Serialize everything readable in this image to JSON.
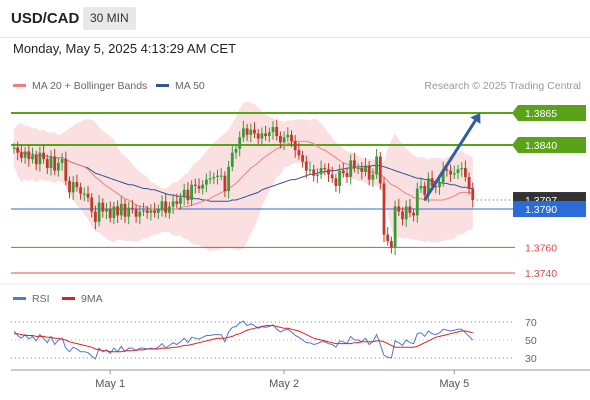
{
  "header": {
    "symbol": "USD/CAD",
    "timeframe": "30 MIN"
  },
  "datetime": "Monday, May 5, 2025 4:13:29 AM CET",
  "legend": {
    "ma20": "MA 20 + Bollinger Bands",
    "ma50": "MA 50",
    "credit": "Research © 2025 Trading Central",
    "rsi": "RSI",
    "rsi_ma": "9MA"
  },
  "colors": {
    "ma20": "#f08080",
    "ma50": "#2f5597",
    "bullish": "#3a9a3a",
    "bearish": "#c0392b",
    "resistance": "#5aa318",
    "support": "#e04848",
    "current": "#333333",
    "pivot": "#2a6dd9",
    "rsi": "#4e79d0",
    "rsi_ma": "#dd2222",
    "arrow": "#2f5f9f",
    "band": "#f6c6c6"
  },
  "chart_data": [
    {
      "type": "candlestick",
      "ylim": [
        1.373,
        1.388
      ],
      "x_ticks": [
        "May 1",
        "May 2",
        "May 5"
      ],
      "levels": [
        {
          "role": "resistance",
          "value": 1.3865,
          "label": "1.3865"
        },
        {
          "role": "resistance",
          "value": 1.384,
          "label": "1.3840"
        },
        {
          "role": "current",
          "value": 1.3797,
          "label": "1.3797"
        },
        {
          "role": "pivot",
          "value": 1.379,
          "label": "1.3790"
        },
        {
          "role": "support",
          "value": 1.376,
          "label": "1.3760"
        },
        {
          "role": "support",
          "value": 1.374,
          "label": "1.3740"
        }
      ],
      "arrow": {
        "from_index": 111,
        "from_value": 1.3797,
        "to_index": 126,
        "to_value": 1.3865
      },
      "close": [
        1.3838,
        1.3834,
        1.383,
        1.3835,
        1.3829,
        1.3832,
        1.3825,
        1.3834,
        1.3829,
        1.3822,
        1.3831,
        1.382,
        1.3826,
        1.3829,
        1.3812,
        1.3803,
        1.3811,
        1.3807,
        1.3802,
        1.3802,
        1.3799,
        1.3788,
        1.378,
        1.3795,
        1.3788,
        1.379,
        1.3783,
        1.3792,
        1.3785,
        1.3794,
        1.3784,
        1.3791,
        1.379,
        1.3784,
        1.3788,
        1.3789,
        1.3787,
        1.3789,
        1.3787,
        1.379,
        1.3796,
        1.3787,
        1.3792,
        1.3796,
        1.3794,
        1.3799,
        1.3805,
        1.3797,
        1.3809,
        1.3808,
        1.3806,
        1.3809,
        1.3813,
        1.3814,
        1.3815,
        1.3816,
        1.3816,
        1.3804,
        1.3823,
        1.3834,
        1.3837,
        1.3846,
        1.3853,
        1.3848,
        1.3852,
        1.3849,
        1.3845,
        1.3849,
        1.3847,
        1.385,
        1.3854,
        1.3847,
        1.3842,
        1.3846,
        1.3848,
        1.3843,
        1.3836,
        1.3832,
        1.3827,
        1.382,
        1.3821,
        1.3816,
        1.3817,
        1.3822,
        1.3821,
        1.3817,
        1.3814,
        1.3808,
        1.382,
        1.3818,
        1.3815,
        1.3828,
        1.3822,
        1.3822,
        1.3819,
        1.3824,
        1.3813,
        1.3817,
        1.3831,
        1.381,
        1.377,
        1.3765,
        1.376,
        1.3792,
        1.3788,
        1.3782,
        1.3792,
        1.3787,
        1.3785,
        1.3806,
        1.3808,
        1.3801,
        1.3814,
        1.3808,
        1.3807,
        1.3811,
        1.3821,
        1.382,
        1.3817,
        1.3818,
        1.3821,
        1.3822,
        1.3815,
        1.3806,
        1.3797
      ],
      "open": [
        1.3838,
        1.3838,
        1.3834,
        1.383,
        1.3835,
        1.3829,
        1.3832,
        1.3825,
        1.3834,
        1.3829,
        1.3822,
        1.3831,
        1.382,
        1.3826,
        1.3829,
        1.3812,
        1.3803,
        1.3811,
        1.3807,
        1.3802,
        1.3802,
        1.3799,
        1.3788,
        1.378,
        1.3795,
        1.3788,
        1.379,
        1.3783,
        1.3792,
        1.3785,
        1.3794,
        1.3784,
        1.3791,
        1.379,
        1.3784,
        1.3788,
        1.3789,
        1.3787,
        1.3789,
        1.3787,
        1.379,
        1.3796,
        1.3787,
        1.3792,
        1.3796,
        1.3794,
        1.3799,
        1.3805,
        1.3797,
        1.3809,
        1.3808,
        1.3806,
        1.3809,
        1.3813,
        1.3814,
        1.3815,
        1.3816,
        1.3816,
        1.3804,
        1.3823,
        1.3834,
        1.3837,
        1.3846,
        1.3853,
        1.3848,
        1.3852,
        1.3849,
        1.3845,
        1.3849,
        1.3847,
        1.385,
        1.3854,
        1.3847,
        1.3842,
        1.3846,
        1.3848,
        1.3843,
        1.3836,
        1.3832,
        1.3827,
        1.382,
        1.3821,
        1.3816,
        1.3817,
        1.3822,
        1.3821,
        1.3817,
        1.3814,
        1.3808,
        1.382,
        1.3818,
        1.3815,
        1.3828,
        1.3822,
        1.3822,
        1.3819,
        1.3824,
        1.3813,
        1.3817,
        1.3831,
        1.381,
        1.377,
        1.3765,
        1.376,
        1.3792,
        1.3788,
        1.3782,
        1.3792,
        1.3787,
        1.3785,
        1.3806,
        1.3808,
        1.3801,
        1.3814,
        1.3808,
        1.3807,
        1.3811,
        1.3821,
        1.382,
        1.3817,
        1.3818,
        1.3821,
        1.3822,
        1.3815,
        1.3806
      ],
      "ma20": [
        1.3838,
        1.3836,
        1.3834,
        1.3834,
        1.3833,
        1.3833,
        1.3832,
        1.3832,
        1.3832,
        1.3831,
        1.3831,
        1.383,
        1.383,
        1.383,
        1.3829,
        1.3827,
        1.3826,
        1.3825,
        1.3824,
        1.3823,
        1.3821,
        1.3818,
        1.3815,
        1.3813,
        1.381,
        1.3808,
        1.3806,
        1.3804,
        1.3802,
        1.38,
        1.3798,
        1.3797,
        1.3795,
        1.3793,
        1.3792,
        1.3792,
        1.3791,
        1.379,
        1.379,
        1.3789,
        1.3789,
        1.3789,
        1.379,
        1.379,
        1.379,
        1.3791,
        1.3792,
        1.3792,
        1.3793,
        1.3794,
        1.3795,
        1.3796,
        1.3797,
        1.3798,
        1.38,
        1.3801,
        1.3803,
        1.3804,
        1.3806,
        1.3808,
        1.381,
        1.3813,
        1.3816,
        1.3819,
        1.3822,
        1.3824,
        1.3826,
        1.3829,
        1.3831,
        1.3833,
        1.3835,
        1.3837,
        1.3838,
        1.384,
        1.3841,
        1.3842,
        1.3843,
        1.3843,
        1.3843,
        1.3843,
        1.3842,
        1.3841,
        1.3839,
        1.3837,
        1.3836,
        1.3834,
        1.3832,
        1.383,
        1.3828,
        1.3826,
        1.3825,
        1.3824,
        1.3823,
        1.3822,
        1.3821,
        1.382,
        1.3819,
        1.3819,
        1.3818,
        1.3817,
        1.3815,
        1.3812,
        1.3809,
        1.3808,
        1.3806,
        1.3804,
        1.3802,
        1.3801,
        1.3799,
        1.3798,
        1.3798,
        1.3797,
        1.3797,
        1.3797,
        1.3797,
        1.3797,
        1.3797,
        1.3798,
        1.3799,
        1.38,
        1.3802,
        1.3803,
        1.3803,
        1.3803,
        1.3802
      ],
      "upper_band": [
        1.3852,
        1.3856,
        1.3857,
        1.3855,
        1.3855,
        1.3853,
        1.3853,
        1.3851,
        1.3852,
        1.385,
        1.385,
        1.385,
        1.3848,
        1.3849,
        1.3851,
        1.3853,
        1.3855,
        1.3857,
        1.3858,
        1.386,
        1.386,
        1.386,
        1.3858,
        1.3854,
        1.3851,
        1.3849,
        1.3847,
        1.3844,
        1.3838,
        1.3834,
        1.3831,
        1.3829,
        1.3825,
        1.3822,
        1.3819,
        1.3817,
        1.3815,
        1.3811,
        1.381,
        1.3808,
        1.3806,
        1.3806,
        1.3808,
        1.3811,
        1.3811,
        1.3813,
        1.3817,
        1.3818,
        1.3823,
        1.3826,
        1.3828,
        1.3832,
        1.3835,
        1.3839,
        1.3842,
        1.3844,
        1.3847,
        1.3849,
        1.3852,
        1.3857,
        1.3862,
        1.3868,
        1.3873,
        1.3874,
        1.3873,
        1.3872,
        1.3869,
        1.3866,
        1.3864,
        1.3862,
        1.3861,
        1.3859,
        1.3859,
        1.3858,
        1.3859,
        1.3859,
        1.386,
        1.386,
        1.386,
        1.386,
        1.3859,
        1.3861,
        1.386,
        1.3857,
        1.3854,
        1.3849,
        1.3846,
        1.3842,
        1.384,
        1.3837,
        1.3835,
        1.3835,
        1.3833,
        1.3832,
        1.383,
        1.383,
        1.3829,
        1.3829,
        1.3828,
        1.3827,
        1.3827,
        1.3837,
        1.3844,
        1.3849,
        1.3844,
        1.3841,
        1.3837,
        1.3835,
        1.3832,
        1.383,
        1.3831,
        1.383,
        1.3829,
        1.383,
        1.383,
        1.383,
        1.3829,
        1.383,
        1.3832,
        1.3833,
        1.3834,
        1.3836,
        1.3833,
        1.3832,
        1.383
      ],
      "lower_band": [
        1.3824,
        1.3816,
        1.3811,
        1.3813,
        1.3812,
        1.3813,
        1.3811,
        1.3813,
        1.3812,
        1.3812,
        1.3812,
        1.381,
        1.3812,
        1.3811,
        1.3807,
        1.3801,
        1.3797,
        1.3793,
        1.379,
        1.3786,
        1.3782,
        1.3776,
        1.3772,
        1.3772,
        1.3769,
        1.3767,
        1.3765,
        1.3764,
        1.3766,
        1.3766,
        1.3765,
        1.3765,
        1.3765,
        1.3764,
        1.3765,
        1.3767,
        1.3767,
        1.3769,
        1.377,
        1.377,
        1.3772,
        1.3772,
        1.3772,
        1.3769,
        1.3769,
        1.3769,
        1.3767,
        1.3766,
        1.3763,
        1.3762,
        1.3762,
        1.376,
        1.3759,
        1.3757,
        1.3758,
        1.3758,
        1.3759,
        1.3759,
        1.376,
        1.3759,
        1.3758,
        1.3758,
        1.3759,
        1.3764,
        1.3771,
        1.3776,
        1.3783,
        1.3792,
        1.3798,
        1.3804,
        1.3809,
        1.3815,
        1.3817,
        1.3822,
        1.3823,
        1.3825,
        1.3826,
        1.3826,
        1.3826,
        1.3826,
        1.3825,
        1.3821,
        1.3818,
        1.3817,
        1.3818,
        1.3819,
        1.3818,
        1.3818,
        1.3816,
        1.3815,
        1.3815,
        1.3813,
        1.3813,
        1.3812,
        1.3812,
        1.381,
        1.3809,
        1.3809,
        1.3808,
        1.3807,
        1.3803,
        1.3787,
        1.3774,
        1.3767,
        1.3768,
        1.3767,
        1.3767,
        1.3767,
        1.3766,
        1.3766,
        1.3765,
        1.3764,
        1.3765,
        1.3764,
        1.3764,
        1.3764,
        1.3765,
        1.3766,
        1.3766,
        1.3767,
        1.377,
        1.377,
        1.3772,
        1.3774,
        1.3774
      ],
      "ma50": [
        1.3838,
        1.3836,
        1.3834,
        1.3834,
        1.3833,
        1.3833,
        1.3832,
        1.3832,
        1.3832,
        1.3831,
        1.3831,
        1.383,
        1.383,
        1.383,
        1.3829,
        1.3827,
        1.3826,
        1.3825,
        1.3824,
        1.3823,
        1.3822,
        1.382,
        1.3818,
        1.3817,
        1.3816,
        1.3815,
        1.3814,
        1.3813,
        1.3812,
        1.3811,
        1.381,
        1.3809,
        1.3809,
        1.3808,
        1.3807,
        1.3806,
        1.3806,
        1.3805,
        1.3805,
        1.3804,
        1.3803,
        1.3802,
        1.3801,
        1.3801,
        1.38,
        1.38,
        1.38,
        1.3799,
        1.3799,
        1.3798,
        1.3798,
        1.3797,
        1.3797,
        1.3796,
        1.3796,
        1.3796,
        1.3796,
        1.3796,
        1.3796,
        1.3797,
        1.3797,
        1.3798,
        1.3799,
        1.38,
        1.3801,
        1.3802,
        1.3803,
        1.3805,
        1.3806,
        1.3807,
        1.3808,
        1.3809,
        1.381,
        1.3811,
        1.3812,
        1.3813,
        1.3813,
        1.3814,
        1.3815,
        1.3816,
        1.3817,
        1.3817,
        1.3818,
        1.3819,
        1.3819,
        1.382,
        1.382,
        1.382,
        1.3821,
        1.3821,
        1.3822,
        1.3822,
        1.3822,
        1.3823,
        1.3823,
        1.3823,
        1.3823,
        1.3824,
        1.3824,
        1.3824,
        1.3823,
        1.3822,
        1.3821,
        1.382,
        1.3819,
        1.3818,
        1.3817,
        1.3816,
        1.3815,
        1.3814,
        1.3814,
        1.3813,
        1.3813,
        1.3812,
        1.3811,
        1.3811,
        1.381,
        1.381,
        1.3809,
        1.3809,
        1.3808,
        1.3807,
        1.3807,
        1.3806,
        1.3806
      ]
    },
    {
      "type": "line",
      "ylim": [
        20,
        80
      ],
      "y_ticks": [
        70,
        50,
        30
      ],
      "series": [
        {
          "name": "RSI",
          "values": [
            60,
            55,
            52,
            56,
            51,
            54,
            49,
            56,
            52,
            47,
            54,
            45,
            50,
            52,
            41,
            37,
            42,
            40,
            37,
            37,
            36,
            32,
            29,
            41,
            37,
            39,
            35,
            41,
            37,
            43,
            37,
            41,
            41,
            38,
            41,
            41,
            40,
            41,
            40,
            42,
            46,
            41,
            44,
            47,
            45,
            48,
            52,
            47,
            53,
            52,
            51,
            53,
            55,
            55,
            56,
            56,
            56,
            48,
            59,
            64,
            65,
            69,
            71,
            66,
            68,
            66,
            63,
            65,
            64,
            65,
            67,
            62,
            59,
            61,
            62,
            59,
            55,
            53,
            50,
            47,
            47,
            45,
            46,
            48,
            48,
            46,
            45,
            42,
            49,
            48,
            46,
            54,
            50,
            50,
            48,
            52,
            45,
            48,
            56,
            45,
            33,
            31,
            30,
            49,
            47,
            44,
            50,
            47,
            46,
            57,
            58,
            54,
            60,
            57,
            56,
            58,
            62,
            61,
            60,
            61,
            62,
            62,
            58,
            54,
            50
          ]
        },
        {
          "name": "9MA",
          "values": [
            57,
            57,
            56,
            55,
            55,
            55,
            54,
            54,
            54,
            53,
            53,
            52,
            52,
            51,
            50,
            48,
            47,
            46,
            45,
            44,
            43,
            42,
            40,
            39,
            38,
            38,
            37,
            37,
            37,
            37,
            38,
            38,
            38,
            39,
            39,
            39,
            40,
            40,
            40,
            40,
            41,
            41,
            41,
            42,
            42,
            43,
            44,
            44,
            45,
            46,
            47,
            48,
            49,
            50,
            51,
            52,
            52,
            52,
            53,
            54,
            56,
            57,
            59,
            61,
            62,
            63,
            64,
            65,
            66,
            66,
            66,
            65,
            64,
            63,
            63,
            62,
            61,
            60,
            58,
            56,
            54,
            52,
            51,
            50,
            49,
            48,
            47,
            46,
            46,
            46,
            46,
            46,
            47,
            47,
            48,
            48,
            48,
            48,
            49,
            49,
            48,
            46,
            44,
            42,
            42,
            42,
            42,
            42,
            42,
            43,
            45,
            47,
            49,
            51,
            53,
            54,
            55,
            56,
            57,
            58,
            59,
            60,
            60,
            59,
            58
          ]
        }
      ]
    }
  ]
}
